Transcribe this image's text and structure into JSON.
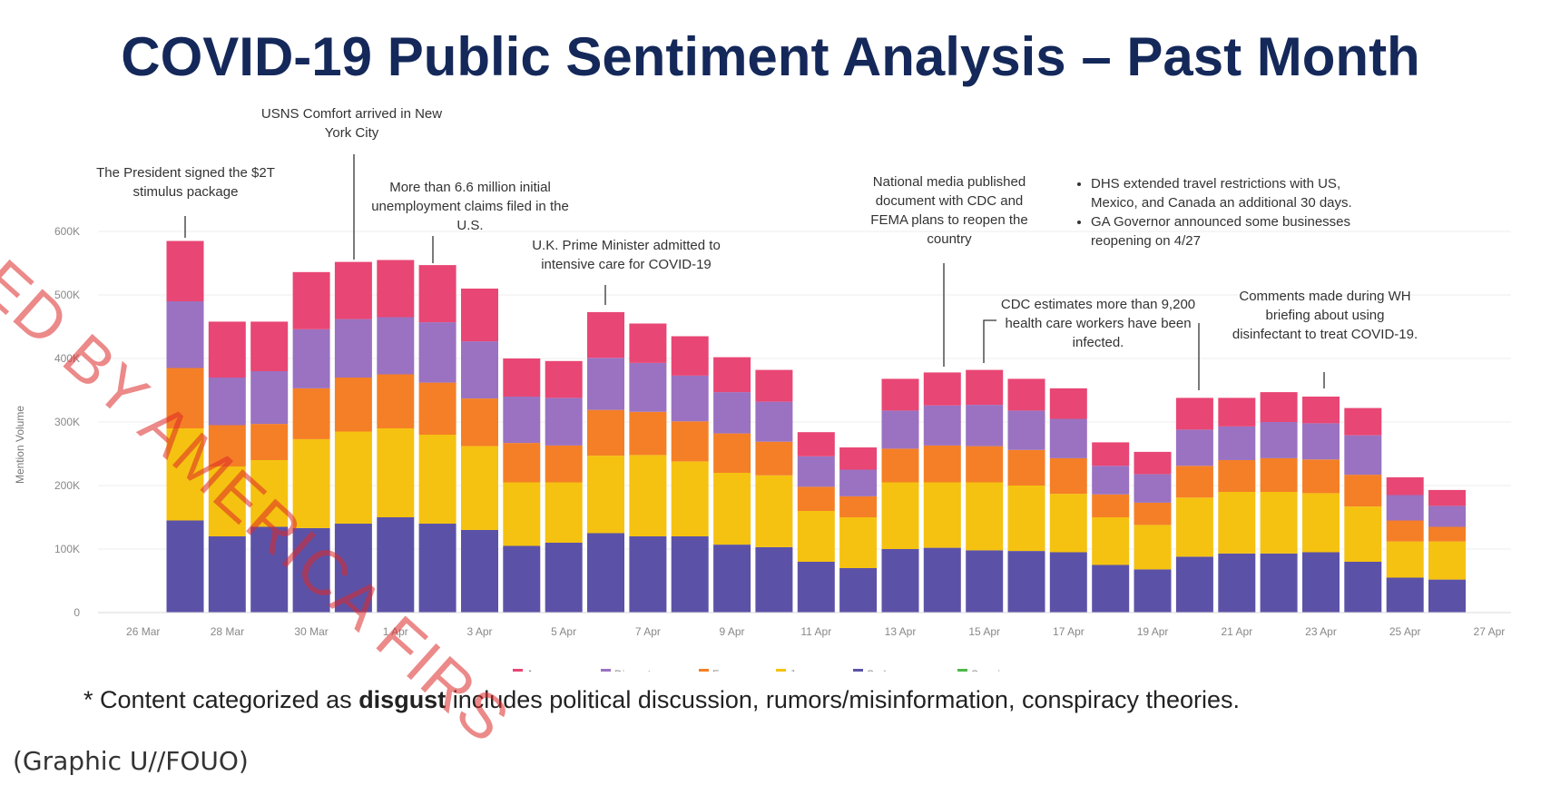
{
  "title": "COVID-19 Public Sentiment Analysis – Past Month",
  "footnote": {
    "prefix": "* Content categorized as ",
    "bold": "disgust",
    "suffix": " includes political discussion, rumors/misinformation, conspiracy theories."
  },
  "classification": "(Graphic U//FOUO)",
  "watermark": "ED BY AMERICA FIRS",
  "annotations": [
    {
      "id": "a1",
      "text": "The President signed the $2T stimulus package"
    },
    {
      "id": "a2",
      "text": "USNS Comfort arrived in New York City"
    },
    {
      "id": "a3",
      "text": "More than 6.6 million initial unemployment claims filed in the U.S."
    },
    {
      "id": "a4",
      "text": "U.K. Prime Minister admitted to intensive care for COVID-19"
    },
    {
      "id": "a5",
      "text": "National media published document with CDC and FEMA plans to reopen the country"
    },
    {
      "id": "a6",
      "text": "CDC estimates more than 9,200 health care workers have been infected."
    },
    {
      "id": "a7",
      "items": [
        "DHS extended travel restrictions with US, Mexico, and Canada an additional 30 days.",
        "GA Governor announced some businesses reopening on 4/27"
      ]
    },
    {
      "id": "a8",
      "text": "Comments made during WH briefing about using disinfectant to treat COVID-19."
    }
  ],
  "chart_data": {
    "type": "bar",
    "stacked": true,
    "ylabel": "Mention Volume",
    "ylim": [
      0,
      600000
    ],
    "yticks": [
      0,
      100000,
      200000,
      300000,
      400000,
      500000,
      600000
    ],
    "ytick_labels": [
      "0",
      "100K",
      "200K",
      "300K",
      "400K",
      "500K",
      "600K"
    ],
    "xtick_labels": [
      "26 Mar",
      "28 Mar",
      "30 Mar",
      "1 Apr",
      "3 Apr",
      "5 Apr",
      "7 Apr",
      "9 Apr",
      "11 Apr",
      "13 Apr",
      "15 Apr",
      "17 Apr",
      "19 Apr",
      "21 Apr",
      "23 Apr",
      "25 Apr",
      "27 Apr"
    ],
    "categories": [
      "27 Mar",
      "28 Mar",
      "29 Mar",
      "30 Mar",
      "31 Mar",
      "1 Apr",
      "2 Apr",
      "3 Apr",
      "4 Apr",
      "5 Apr",
      "6 Apr",
      "7 Apr",
      "8 Apr",
      "9 Apr",
      "10 Apr",
      "11 Apr",
      "12 Apr",
      "13 Apr",
      "14 Apr",
      "15 Apr",
      "16 Apr",
      "17 Apr",
      "18 Apr",
      "19 Apr",
      "20 Apr",
      "21 Apr",
      "22 Apr",
      "23 Apr",
      "24 Apr",
      "25 Apr",
      "26 Apr"
    ],
    "series": [
      {
        "name": "Sadness",
        "color": "#5b52a8",
        "values": [
          145000,
          120000,
          135000,
          133000,
          140000,
          150000,
          140000,
          130000,
          105000,
          110000,
          125000,
          120000,
          120000,
          107000,
          103000,
          80000,
          70000,
          100000,
          102000,
          98000,
          97000,
          95000,
          75000,
          68000,
          88000,
          93000,
          93000,
          95000,
          80000,
          55000,
          52000
        ]
      },
      {
        "name": "Joy",
        "color": "#f5c211",
        "values": [
          145000,
          110000,
          105000,
          140000,
          145000,
          140000,
          140000,
          132000,
          100000,
          95000,
          122000,
          128000,
          118000,
          113000,
          113000,
          80000,
          80000,
          105000,
          103000,
          107000,
          103000,
          92000,
          75000,
          70000,
          93000,
          97000,
          97000,
          93000,
          87000,
          57000,
          60000
        ]
      },
      {
        "name": "Fear",
        "color": "#f57f26",
        "values": [
          95000,
          65000,
          57000,
          80000,
          85000,
          85000,
          82000,
          75000,
          62000,
          58000,
          72000,
          68000,
          63000,
          62000,
          53000,
          38000,
          33000,
          53000,
          58000,
          57000,
          56000,
          56000,
          36000,
          35000,
          50000,
          50000,
          53000,
          53000,
          50000,
          33000,
          23000
        ]
      },
      {
        "name": "Disgust",
        "color": "#9a72c1",
        "values": [
          105000,
          75000,
          83000,
          93000,
          92000,
          90000,
          95000,
          90000,
          73000,
          75000,
          82000,
          77000,
          72000,
          65000,
          63000,
          48000,
          42000,
          60000,
          63000,
          65000,
          62000,
          62000,
          45000,
          45000,
          57000,
          53000,
          57000,
          57000,
          62000,
          40000,
          33000
        ]
      },
      {
        "name": "Anger",
        "color": "#e84674",
        "values": [
          95000,
          88000,
          78000,
          90000,
          90000,
          90000,
          90000,
          83000,
          60000,
          58000,
          72000,
          62000,
          62000,
          55000,
          50000,
          38000,
          35000,
          50000,
          52000,
          55000,
          50000,
          48000,
          37000,
          35000,
          50000,
          45000,
          47000,
          42000,
          43000,
          28000,
          25000
        ]
      },
      {
        "name": "Surprise",
        "color": "#4db848",
        "values": [
          0,
          0,
          0,
          0,
          0,
          0,
          0,
          0,
          0,
          0,
          0,
          0,
          0,
          0,
          0,
          0,
          0,
          0,
          0,
          0,
          0,
          0,
          0,
          0,
          0,
          0,
          0,
          0,
          0,
          0,
          0
        ]
      }
    ],
    "legend_placement": "bottom-center",
    "grid": true
  }
}
